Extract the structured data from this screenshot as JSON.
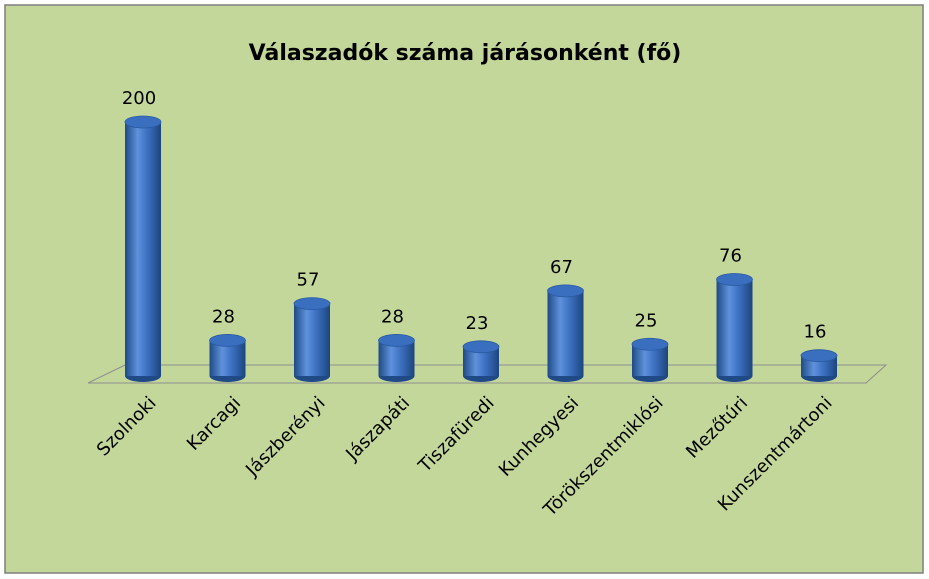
{
  "chart_data": {
    "type": "bar",
    "title": "Válaszadók száma járásonként (fő)",
    "categories": [
      "Szolnoki",
      "Karcagi",
      "Jászberényi",
      "Jászapáti",
      "Tiszafüredi",
      "Kunhegyesi",
      "Törökszentmiklósi",
      "Mezőtúri",
      "Kunszentmártoni"
    ],
    "values": [
      200,
      28,
      57,
      28,
      23,
      67,
      25,
      76,
      16
    ],
    "color": "#3a6fc0"
  }
}
